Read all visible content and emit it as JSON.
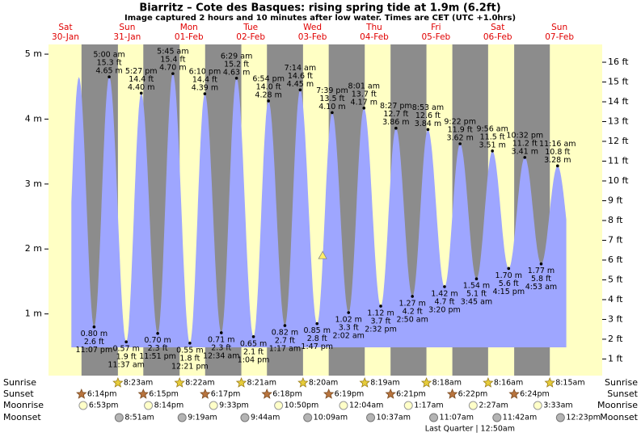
{
  "chart_data": {
    "type": "tide",
    "title": "Biarritz – Cote des Basques: rising  spring tide at 1.9m (6.2ft)",
    "subtitle": "Image captured 2 hours and 10 minutes after low water. Times are CET (UTC +1.0hrs)",
    "color": "#9ea6ff",
    "current_m": 1.9,
    "ylim": [
      0.05,
      5.15
    ],
    "yticks": [
      {
        "value": 1,
        "label": "1 m"
      },
      {
        "value": 2,
        "label": "2 m"
      },
      {
        "value": 3,
        "label": "3 m"
      },
      {
        "value": 4,
        "label": "4 m"
      },
      {
        "value": 5,
        "label": "5 m"
      }
    ],
    "y2lim": [
      0.16,
      16.9
    ],
    "y2ticks": [
      {
        "value": 1,
        "label": "1 ft"
      },
      {
        "value": 2,
        "label": "2 ft"
      },
      {
        "value": 3,
        "label": "3 ft"
      },
      {
        "value": 4,
        "label": "4 ft"
      },
      {
        "value": 5,
        "label": "5 ft"
      },
      {
        "value": 6,
        "label": "6 ft"
      },
      {
        "value": 7,
        "label": "7 ft"
      },
      {
        "value": 8,
        "label": "8 ft"
      },
      {
        "value": 9,
        "label": "9 ft"
      },
      {
        "value": 10,
        "label": "10 ft"
      },
      {
        "value": 11,
        "label": "11 ft"
      },
      {
        "value": 12,
        "label": "12 ft"
      },
      {
        "value": 13,
        "label": "13 ft"
      },
      {
        "value": 14,
        "label": "14 ft"
      },
      {
        "value": 15,
        "label": "15 ft"
      },
      {
        "value": 16,
        "label": "16 ft"
      }
    ],
    "row_labels": {
      "sunrise": "Sunrise",
      "sunset": "Sunset",
      "moonrise": "Moonrise",
      "moonset": "Moonset"
    },
    "days": [
      {
        "name": "Sat",
        "date": "30-Jan",
        "tides": [
          {
            "time": "11:07 pm",
            "ft": "2.6 ft",
            "m": 0.8,
            "m_label": "0.80 m"
          }
        ],
        "sunset": "6:14pm",
        "moonrise": "6:53pm"
      },
      {
        "name": "Sun",
        "date": "31-Jan",
        "tides": [
          {
            "time": "5:00 am",
            "ft": "15.3 ft",
            "m": 4.65,
            "m_label": "4.65 m"
          },
          {
            "time": "11:37 am",
            "ft": "1.9 ft",
            "m": 0.57,
            "m_label": "0.57 m"
          },
          {
            "time": "5:27 pm",
            "ft": "14.4 ft",
            "m": 4.4,
            "m_label": "4.40 m"
          },
          {
            "time": "11:51 pm",
            "ft": "2.3 ft",
            "m": 0.7,
            "m_label": "0.70 m"
          }
        ],
        "sunrise": "8:23am",
        "sunset": "6:15pm",
        "moonrise": "8:14pm",
        "moonset": "8:51am"
      },
      {
        "name": "Mon",
        "date": "01-Feb",
        "tides": [
          {
            "time": "5:45 am",
            "ft": "15.4 ft",
            "m": 4.7,
            "m_label": "4.70 m"
          },
          {
            "time": "12:21 pm",
            "ft": "1.8 ft",
            "m": 0.55,
            "m_label": "0.55 m"
          },
          {
            "time": "6:10 pm",
            "ft": "14.4 ft",
            "m": 4.39,
            "m_label": "4.39 m"
          }
        ],
        "sunrise": "8:22am",
        "sunset": "6:17pm",
        "moonrise": "9:33pm",
        "moonset": "9:19am"
      },
      {
        "name": "Tue",
        "date": "02-Feb",
        "tides": [
          {
            "time": "12:34 am",
            "ft": "2.3 ft",
            "m": 0.71,
            "m_label": "0.71 m"
          },
          {
            "time": "6:29 am",
            "ft": "15.2 ft",
            "m": 4.63,
            "m_label": "4.63 m"
          },
          {
            "time": "1:04 pm",
            "ft": "2.1 ft",
            "m": 0.65,
            "m_label": "0.65 m"
          },
          {
            "time": "6:54 pm",
            "ft": "14.0 ft",
            "m": 4.28,
            "m_label": "4.28 m"
          }
        ],
        "sunrise": "8:21am",
        "sunset": "6:18pm",
        "moonrise": "10:50pm",
        "moonset": "9:44am"
      },
      {
        "name": "Wed",
        "date": "03-Feb",
        "tides": [
          {
            "time": "1:17 am",
            "ft": "2.7 ft",
            "m": 0.82,
            "m_label": "0.82 m"
          },
          {
            "time": "7:14 am",
            "ft": "14.6 ft",
            "m": 4.45,
            "m_label": "4.45 m"
          },
          {
            "time": "1:47 pm",
            "ft": "2.8 ft",
            "m": 0.85,
            "m_label": "0.85 m"
          },
          {
            "time": "7:39 pm",
            "ft": "13.5 ft",
            "m": 4.1,
            "m_label": "4.10 m"
          }
        ],
        "sunrise": "8:20am",
        "sunset": "6:19pm",
        "moonset": "10:09am"
      },
      {
        "name": "Thu",
        "date": "04-Feb",
        "tides": [
          {
            "time": "2:02 am",
            "ft": "3.3 ft",
            "m": 1.02,
            "m_label": "1.02 m"
          },
          {
            "time": "8:01 am",
            "ft": "13.7 ft",
            "m": 4.17,
            "m_label": "4.17 m"
          },
          {
            "time": "2:32 pm",
            "ft": "3.7 ft",
            "m": 1.12,
            "m_label": "1.12 m"
          },
          {
            "time": "8:27 pm",
            "ft": "12.7 ft",
            "m": 3.86,
            "m_label": "3.86 m"
          }
        ],
        "sunrise": "8:19am",
        "sunset": "6:21pm",
        "moonrise": "12:04am",
        "moonset": "10:37am"
      },
      {
        "name": "Fri",
        "date": "05-Feb",
        "tides": [
          {
            "time": "2:50 am",
            "ft": "4.2 ft",
            "m": 1.27,
            "m_label": "1.27 m"
          },
          {
            "time": "8:53 am",
            "ft": "12.6 ft",
            "m": 3.84,
            "m_label": "3.84 m"
          },
          {
            "time": "3:20 pm",
            "ft": "4.7 ft",
            "m": 1.42,
            "m_label": "1.42 m"
          },
          {
            "time": "9:22 pm",
            "ft": "11.9 ft",
            "m": 3.62,
            "m_label": "3.62 m"
          }
        ],
        "sunrise": "8:18am",
        "sunset": "6:22pm",
        "moonrise": "1:17am",
        "moonset": "11:07am",
        "moon_phase": "Last Quarter | 12:50am"
      },
      {
        "name": "Sat",
        "date": "06-Feb",
        "tides": [
          {
            "time": "3:45 am",
            "ft": "5.1 ft",
            "m": 1.54,
            "m_label": "1.54 m"
          },
          {
            "time": "9:56 am",
            "ft": "11.5 ft",
            "m": 3.51,
            "m_label": "3.51 m"
          },
          {
            "time": "4:15 pm",
            "ft": "5.6 ft",
            "m": 1.7,
            "m_label": "1.70 m"
          },
          {
            "time": "10:32 pm",
            "ft": "11.2 ft",
            "m": 3.41,
            "m_label": "3.41 m"
          }
        ],
        "sunrise": "8:16am",
        "sunset": "6:24pm",
        "moonrise": "2:27am",
        "moonset": "11:42am"
      },
      {
        "name": "Sun",
        "date": "07-Feb",
        "tides": [
          {
            "time": "4:53 am",
            "ft": "5.8 ft",
            "m": 1.77,
            "m_label": "1.77 m"
          },
          {
            "time": "11:16 am",
            "ft": "10.8 ft",
            "m": 3.28,
            "m_label": "3.28 m"
          }
        ],
        "sunrise": "8:15am",
        "moonrise": "3:33am",
        "moonset": "12:23pm"
      }
    ]
  }
}
